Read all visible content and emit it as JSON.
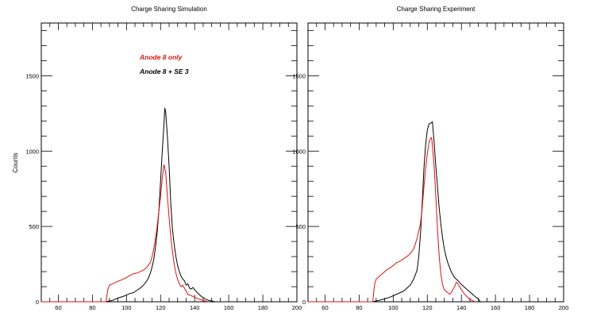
{
  "colors": {
    "series_red": "#e01010",
    "series_black": "#000000",
    "axis": "#000000"
  },
  "chart_data": [
    {
      "type": "line",
      "title": "Charge Sharing Simulation",
      "xlabel": "",
      "ylabel": "Counts",
      "xlim": [
        50,
        200
      ],
      "ylim": [
        0,
        1850
      ],
      "xticks": [
        60,
        80,
        100,
        120,
        140,
        160,
        180,
        200
      ],
      "yticks": [
        0,
        500,
        1000,
        1500
      ],
      "legend": [
        "Anode  8 only",
        "Anode  8 + SE 3"
      ],
      "series": [
        {
          "name": "Anode  8 + SE 3",
          "color": "#000000",
          "points": [
            [
              50,
              0
            ],
            [
              88,
              0
            ],
            [
              89,
              3
            ],
            [
              92,
              10
            ],
            [
              95,
              25
            ],
            [
              98,
              35
            ],
            [
              100,
              45
            ],
            [
              102,
              55
            ],
            [
              104,
              60
            ],
            [
              106,
              75
            ],
            [
              108,
              90
            ],
            [
              110,
              110
            ],
            [
              112,
              140
            ],
            [
              113,
              160
            ],
            [
              114,
              190
            ],
            [
              115,
              230
            ],
            [
              116,
              280
            ],
            [
              117,
              360
            ],
            [
              118,
              460
            ],
            [
              119,
              600
            ],
            [
              120,
              800
            ],
            [
              121,
              1000
            ],
            [
              122,
              1180
            ],
            [
              122.5,
              1285
            ],
            [
              123,
              1260
            ],
            [
              124,
              1100
            ],
            [
              125,
              900
            ],
            [
              126,
              650
            ],
            [
              127,
              480
            ],
            [
              128,
              380
            ],
            [
              129,
              300
            ],
            [
              130,
              240
            ],
            [
              131,
              200
            ],
            [
              132,
              170
            ],
            [
              133,
              150
            ],
            [
              134,
              140
            ],
            [
              135,
              110
            ],
            [
              136,
              120
            ],
            [
              137,
              90
            ],
            [
              138,
              85
            ],
            [
              139,
              95
            ],
            [
              140,
              80
            ],
            [
              142,
              55
            ],
            [
              144,
              35
            ],
            [
              146,
              20
            ],
            [
              148,
              10
            ],
            [
              150,
              5
            ],
            [
              152,
              0
            ]
          ]
        },
        {
          "name": "Anode  8 only",
          "color": "#e01010",
          "points": [
            [
              50,
              0
            ],
            [
              88,
              0
            ],
            [
              89,
              80
            ],
            [
              90,
              110
            ],
            [
              92,
              120
            ],
            [
              94,
              130
            ],
            [
              96,
              140
            ],
            [
              98,
              150
            ],
            [
              100,
              160
            ],
            [
              102,
              175
            ],
            [
              104,
              185
            ],
            [
              106,
              190
            ],
            [
              108,
              200
            ],
            [
              110,
              210
            ],
            [
              112,
              230
            ],
            [
              114,
              260
            ],
            [
              115,
              300
            ],
            [
              116,
              350
            ],
            [
              117,
              420
            ],
            [
              118,
              500
            ],
            [
              119,
              600
            ],
            [
              120,
              700
            ],
            [
              121,
              820
            ],
            [
              122,
              910
            ],
            [
              123,
              860
            ],
            [
              124,
              700
            ],
            [
              125,
              560
            ],
            [
              126,
              430
            ],
            [
              127,
              330
            ],
            [
              128,
              250
            ],
            [
              129,
              190
            ],
            [
              130,
              150
            ],
            [
              131,
              120
            ],
            [
              132,
              100
            ],
            [
              133,
              110
            ],
            [
              134,
              90
            ],
            [
              135,
              70
            ],
            [
              136,
              50
            ],
            [
              138,
              40
            ],
            [
              140,
              30
            ],
            [
              142,
              20
            ],
            [
              144,
              12
            ],
            [
              146,
              6
            ],
            [
              148,
              0
            ]
          ]
        }
      ]
    },
    {
      "type": "line",
      "title": "Charge Sharing Experiment",
      "xlabel": "",
      "ylabel": "",
      "xlim": [
        50,
        200
      ],
      "ylim": [
        0,
        1850
      ],
      "xticks": [
        60,
        80,
        100,
        120,
        140,
        160,
        180,
        200
      ],
      "yticks": [
        0,
        500,
        1000,
        1500
      ],
      "series": [
        {
          "name": "black",
          "color": "#000000",
          "points": [
            [
              50,
              0
            ],
            [
              88,
              0
            ],
            [
              90,
              5
            ],
            [
              92,
              10
            ],
            [
              95,
              20
            ],
            [
              98,
              30
            ],
            [
              100,
              40
            ],
            [
              102,
              50
            ],
            [
              104,
              60
            ],
            [
              106,
              70
            ],
            [
              108,
              90
            ],
            [
              110,
              110
            ],
            [
              112,
              150
            ],
            [
              114,
              210
            ],
            [
              115,
              300
            ],
            [
              116,
              450
            ],
            [
              117,
              650
            ],
            [
              118,
              880
            ],
            [
              119,
              1040
            ],
            [
              120,
              1140
            ],
            [
              121,
              1180
            ],
            [
              122,
              1185
            ],
            [
              123,
              1195
            ],
            [
              124,
              1060
            ],
            [
              125,
              900
            ],
            [
              126,
              760
            ],
            [
              127,
              620
            ],
            [
              128,
              510
            ],
            [
              129,
              420
            ],
            [
              130,
              350
            ],
            [
              131,
              300
            ],
            [
              132,
              260
            ],
            [
              133,
              230
            ],
            [
              134,
              200
            ],
            [
              135,
              180
            ],
            [
              136,
              160
            ],
            [
              137,
              150
            ],
            [
              138,
              140
            ],
            [
              140,
              115
            ],
            [
              142,
              95
            ],
            [
              144,
              75
            ],
            [
              146,
              55
            ],
            [
              148,
              35
            ],
            [
              150,
              20
            ],
            [
              151,
              0
            ]
          ]
        },
        {
          "name": "red",
          "color": "#e01010",
          "points": [
            [
              50,
              0
            ],
            [
              88,
              0
            ],
            [
              89,
              110
            ],
            [
              90,
              150
            ],
            [
              92,
              170
            ],
            [
              94,
              190
            ],
            [
              96,
              210
            ],
            [
              98,
              225
            ],
            [
              100,
              240
            ],
            [
              102,
              260
            ],
            [
              104,
              270
            ],
            [
              106,
              285
            ],
            [
              108,
              300
            ],
            [
              110,
              320
            ],
            [
              112,
              350
            ],
            [
              114,
              420
            ],
            [
              116,
              520
            ],
            [
              117,
              620
            ],
            [
              118,
              760
            ],
            [
              119,
              880
            ],
            [
              120,
              980
            ],
            [
              121,
              1060
            ],
            [
              122,
              1085
            ],
            [
              122.5,
              1090
            ],
            [
              123,
              1040
            ],
            [
              124,
              900
            ],
            [
              125,
              700
            ],
            [
              126,
              480
            ],
            [
              127,
              300
            ],
            [
              128,
              180
            ],
            [
              129,
              110
            ],
            [
              130,
              80
            ],
            [
              131,
              70
            ],
            [
              132,
              60
            ],
            [
              133,
              50
            ],
            [
              134,
              60
            ],
            [
              135,
              80
            ],
            [
              136,
              100
            ],
            [
              137,
              130
            ],
            [
              138,
              120
            ],
            [
              139,
              100
            ],
            [
              140,
              80
            ],
            [
              142,
              50
            ],
            [
              144,
              25
            ],
            [
              146,
              10
            ],
            [
              148,
              0
            ]
          ]
        }
      ]
    }
  ]
}
